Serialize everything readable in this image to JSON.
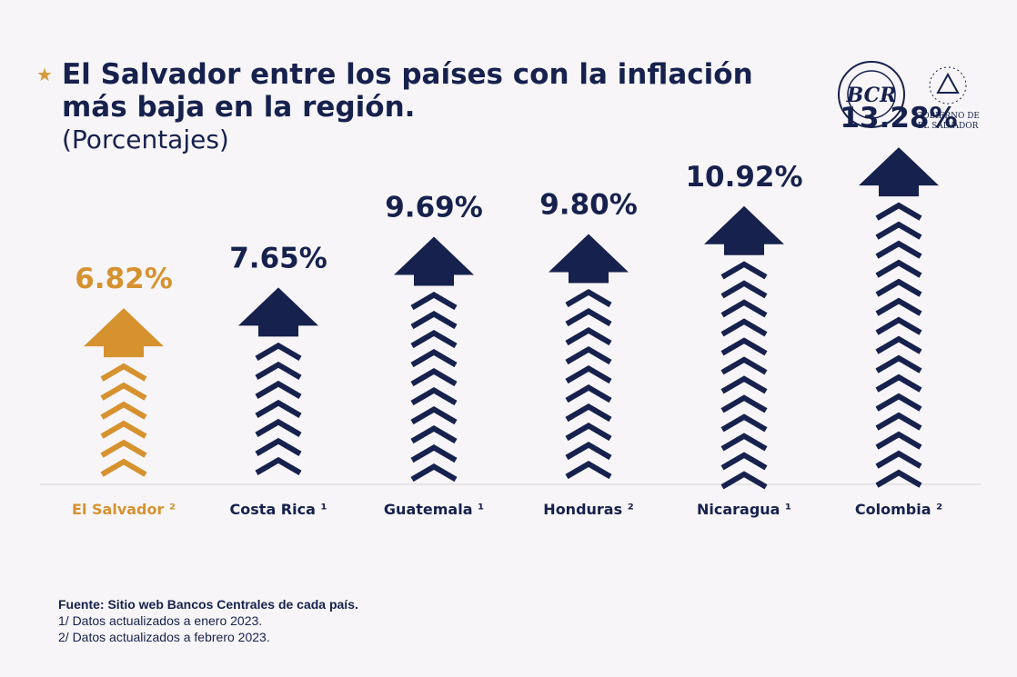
{
  "header": {
    "title": "El Salvador entre los países con la inflación más baja en la región.",
    "subtitle": "(Porcentajes)",
    "star_icon": "star-icon"
  },
  "logos": {
    "bcr_text": "BCR",
    "bcr_ring_text": "BANCO CENTRAL DE RESERVA · DE EL SALVADOR",
    "gob_line1": "GOBIERNO DE",
    "gob_line2": "EL SALVADOR"
  },
  "colors": {
    "navy": "#16214d",
    "highlight": "#d6922f",
    "background": "#f7f5f7"
  },
  "chart_data": {
    "type": "bar",
    "unit": "%",
    "categories": [
      "El Salvador ²",
      "Costa Rica ¹",
      "Guatemala ¹",
      "Honduras ²",
      "Nicaragua ¹",
      "Colombia ²"
    ],
    "values": [
      6.82,
      7.65,
      9.69,
      9.8,
      10.92,
      13.28
    ],
    "value_labels": [
      "6.82%",
      "7.65%",
      "9.69%",
      "9.80%",
      "10.92%",
      "13.28%"
    ],
    "highlight_index": 0,
    "bar_style": "arrow-with-chevrons"
  },
  "footer": {
    "source": "Fuente: Sitio web Bancos Centrales de cada país.",
    "note1": "1/ Datos actualizados a enero 2023.",
    "note2": "2/ Datos actualizados a febrero 2023."
  }
}
